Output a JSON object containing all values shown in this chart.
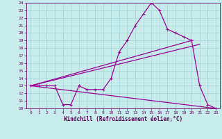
{
  "xlabel": "Windchill (Refroidissement éolien,°C)",
  "bg_color": "#c8ecec",
  "grid_color": "#a8d8d8",
  "line_color": "#990099",
  "xlim": [
    -0.5,
    23.5
  ],
  "ylim": [
    10,
    24
  ],
  "xticks": [
    0,
    1,
    2,
    3,
    4,
    5,
    6,
    7,
    8,
    9,
    10,
    11,
    12,
    13,
    14,
    15,
    16,
    17,
    18,
    19,
    20,
    21,
    22,
    23
  ],
  "yticks": [
    10,
    11,
    12,
    13,
    14,
    15,
    16,
    17,
    18,
    19,
    20,
    21,
    22,
    23,
    24
  ],
  "line1_x": [
    0,
    1,
    2,
    3,
    4,
    5,
    6,
    7,
    8,
    9,
    10,
    11,
    12,
    13,
    14,
    15,
    16,
    17,
    18,
    19,
    20,
    21,
    22,
    23
  ],
  "line1_y": [
    13,
    13,
    13,
    13,
    10.5,
    10.5,
    13,
    12.5,
    12.5,
    12.5,
    14,
    17.5,
    19,
    21,
    22.5,
    24,
    23,
    20.5,
    20,
    19.5,
    19,
    13,
    10.5,
    10
  ],
  "line2_x": [
    0,
    20
  ],
  "line2_y": [
    13,
    19
  ],
  "line3_x": [
    0,
    21
  ],
  "line3_y": [
    13,
    18.5
  ],
  "line4_x": [
    0,
    23
  ],
  "line4_y": [
    13,
    10
  ]
}
